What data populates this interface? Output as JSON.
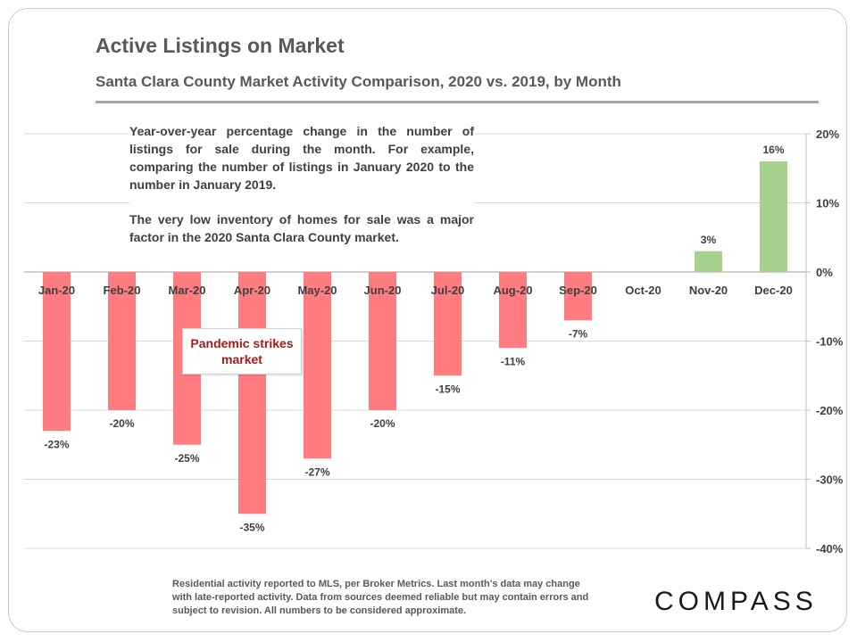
{
  "header": {
    "title": "Active Listings on Market",
    "subtitle": "Santa Clara County Market Activity Comparison,  2020 vs. 2019, by Month"
  },
  "note": {
    "para1": "Year-over-year percentage change in the number of listings for sale during the month. For example, comparing the number of listings in January 2020 to the number in January 2019.",
    "para2": "The very low inventory of homes for sale was a major factor in the 2020 Santa Clara County market."
  },
  "callout": {
    "line1": "Pandemic strikes",
    "line2": "market"
  },
  "footer": {
    "disclaimer": "Residential activity reported to MLS, per Broker Metrics. Last month's data may change with late-reported activity. Data from sources deemed reliable but may contain errors and subject to revision. All numbers to be considered approximate."
  },
  "brand": {
    "logo_text": "COMPASS"
  },
  "chart_data": {
    "type": "bar",
    "categories": [
      "Jan-20",
      "Feb-20",
      "Mar-20",
      "Apr-20",
      "May-20",
      "Jun-20",
      "Jul-20",
      "Aug-20",
      "Sep-20",
      "Oct-20",
      "Nov-20",
      "Dec-20"
    ],
    "values": [
      -23,
      -20,
      -25,
      -35,
      -27,
      -20,
      -15,
      -11,
      -7,
      0,
      3,
      16
    ],
    "data_labels": [
      "-23%",
      "-20%",
      "-25%",
      "-35%",
      "-27%",
      "-20%",
      "-15%",
      "-11%",
      "-7%",
      "",
      "3%",
      "16%"
    ],
    "ylim": [
      -40,
      20
    ],
    "yticks": [
      20,
      10,
      0,
      -10,
      -20,
      -30,
      -40
    ],
    "ytick_labels": [
      "20%",
      "10%",
      "0%",
      "-10%",
      "-20%",
      "-30%",
      "-40%"
    ],
    "y_axis_side": "right",
    "grid": true,
    "colors": {
      "negative": "#ff7c80",
      "positive": "#a9d18e",
      "grid": "#d9d9d9",
      "axis": "#bfbfbf"
    }
  }
}
